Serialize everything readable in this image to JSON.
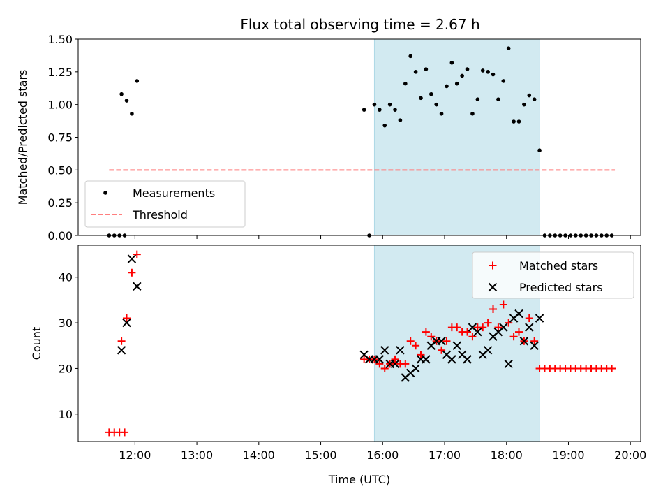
{
  "title": "Flux total observing time = 2.67 h",
  "colors": {
    "measurement": "#000000",
    "threshold": "#ff7f7f",
    "matched": "#ff0000",
    "predicted": "#000000",
    "shade": "#add8e6"
  },
  "chart_data": [
    {
      "type": "scatter",
      "ylabel": "Matched/Predicted stars",
      "ylim": [
        0,
        1.5
      ],
      "yticks": [
        "0.00",
        "0.25",
        "0.50",
        "0.75",
        "1.00",
        "1.25",
        "1.50"
      ],
      "shaded_span": [
        "15:52",
        "18:32"
      ],
      "legend_position": "lower-left",
      "series": [
        {
          "name": "Measurements",
          "style": "dot",
          "points": [
            [
              "11:35",
              0
            ],
            [
              "11:40",
              0
            ],
            [
              "11:45",
              0
            ],
            [
              "11:50",
              0
            ],
            [
              "11:47",
              1.08
            ],
            [
              "11:52",
              1.03
            ],
            [
              "11:57",
              0.93
            ],
            [
              "12:02",
              1.18
            ],
            [
              "15:42",
              0.96
            ],
            [
              "15:47",
              0
            ],
            [
              "15:52",
              1.0
            ],
            [
              "15:57",
              0.96
            ],
            [
              "16:02",
              0.84
            ],
            [
              "16:07",
              1.0
            ],
            [
              "16:12",
              0.96
            ],
            [
              "16:17",
              0.88
            ],
            [
              "16:22",
              1.16
            ],
            [
              "16:27",
              1.37
            ],
            [
              "16:32",
              1.25
            ],
            [
              "16:37",
              1.05
            ],
            [
              "16:42",
              1.27
            ],
            [
              "16:47",
              1.08
            ],
            [
              "16:52",
              1.0
            ],
            [
              "16:57",
              0.93
            ],
            [
              "17:02",
              1.14
            ],
            [
              "17:07",
              1.32
            ],
            [
              "17:12",
              1.16
            ],
            [
              "17:17",
              1.22
            ],
            [
              "17:22",
              1.27
            ],
            [
              "17:27",
              0.93
            ],
            [
              "17:32",
              1.04
            ],
            [
              "17:37",
              1.26
            ],
            [
              "17:42",
              1.25
            ],
            [
              "17:47",
              1.23
            ],
            [
              "17:52",
              1.04
            ],
            [
              "17:57",
              1.18
            ],
            [
              "18:02",
              1.43
            ],
            [
              "18:07",
              0.87
            ],
            [
              "18:12",
              0.87
            ],
            [
              "18:17",
              1.0
            ],
            [
              "18:22",
              1.07
            ],
            [
              "18:27",
              1.04
            ],
            [
              "18:32",
              0.65
            ],
            [
              "18:37",
              0
            ],
            [
              "18:42",
              0
            ],
            [
              "18:47",
              0
            ],
            [
              "18:52",
              0
            ],
            [
              "18:57",
              0
            ],
            [
              "19:02",
              0
            ],
            [
              "19:07",
              0
            ],
            [
              "19:12",
              0
            ],
            [
              "19:17",
              0
            ],
            [
              "19:22",
              0
            ],
            [
              "19:27",
              0
            ],
            [
              "19:32",
              0
            ],
            [
              "19:37",
              0
            ],
            [
              "19:42",
              0
            ]
          ]
        },
        {
          "name": "Threshold",
          "style": "dashed-line",
          "points": [
            [
              "11:35",
              0.5
            ],
            [
              "19:45",
              0.5
            ]
          ]
        }
      ]
    },
    {
      "type": "scatter",
      "xlabel": "Time (UTC)",
      "ylabel": "Count",
      "ylim": [
        4,
        47
      ],
      "yticks": [
        "10",
        "20",
        "30",
        "40"
      ],
      "xlim": [
        "11:05",
        "20:10"
      ],
      "xticks": [
        "12:00",
        "13:00",
        "14:00",
        "15:00",
        "16:00",
        "17:00",
        "18:00",
        "19:00",
        "20:00"
      ],
      "shaded_span": [
        "15:52",
        "18:32"
      ],
      "legend_position": "upper-right",
      "series": [
        {
          "name": "Matched stars",
          "style": "plus",
          "points": [
            [
              "11:35",
              6
            ],
            [
              "11:40",
              6
            ],
            [
              "11:45",
              6
            ],
            [
              "11:50",
              6
            ],
            [
              "11:47",
              26
            ],
            [
              "11:52",
              31
            ],
            [
              "11:57",
              41
            ],
            [
              "12:02",
              45
            ],
            [
              "15:42",
              22
            ],
            [
              "15:47",
              22
            ],
            [
              "15:52",
              22
            ],
            [
              "15:57",
              21
            ],
            [
              "16:02",
              20
            ],
            [
              "16:07",
              21
            ],
            [
              "16:12",
              22
            ],
            [
              "16:17",
              21
            ],
            [
              "16:22",
              21
            ],
            [
              "16:27",
              26
            ],
            [
              "16:32",
              25
            ],
            [
              "16:37",
              23
            ],
            [
              "16:42",
              28
            ],
            [
              "16:47",
              27
            ],
            [
              "16:52",
              26
            ],
            [
              "16:57",
              24
            ],
            [
              "17:02",
              26
            ],
            [
              "17:07",
              29
            ],
            [
              "17:12",
              29
            ],
            [
              "17:17",
              28
            ],
            [
              "17:22",
              28
            ],
            [
              "17:27",
              27
            ],
            [
              "17:32",
              29
            ],
            [
              "17:37",
              29
            ],
            [
              "17:42",
              30
            ],
            [
              "17:47",
              33
            ],
            [
              "17:52",
              29
            ],
            [
              "17:57",
              34
            ],
            [
              "18:02",
              30
            ],
            [
              "18:07",
              27
            ],
            [
              "18:12",
              28
            ],
            [
              "18:17",
              26
            ],
            [
              "18:22",
              31
            ],
            [
              "18:27",
              26
            ],
            [
              "18:32",
              20
            ],
            [
              "18:37",
              20
            ],
            [
              "18:42",
              20
            ],
            [
              "18:47",
              20
            ],
            [
              "18:52",
              20
            ],
            [
              "18:57",
              20
            ],
            [
              "19:02",
              20
            ],
            [
              "19:07",
              20
            ],
            [
              "19:12",
              20
            ],
            [
              "19:17",
              20
            ],
            [
              "19:22",
              20
            ],
            [
              "19:27",
              20
            ],
            [
              "19:32",
              20
            ],
            [
              "19:37",
              20
            ],
            [
              "19:42",
              20
            ]
          ]
        },
        {
          "name": "Predicted stars",
          "style": "x",
          "points": [
            [
              "11:47",
              24
            ],
            [
              "11:52",
              30
            ],
            [
              "11:57",
              44
            ],
            [
              "12:02",
              38
            ],
            [
              "15:42",
              23
            ],
            [
              "15:47",
              22
            ],
            [
              "15:52",
              22
            ],
            [
              "15:57",
              22
            ],
            [
              "16:02",
              24
            ],
            [
              "16:07",
              21
            ],
            [
              "16:12",
              21
            ],
            [
              "16:17",
              24
            ],
            [
              "16:22",
              18
            ],
            [
              "16:27",
              19
            ],
            [
              "16:32",
              20
            ],
            [
              "16:37",
              22
            ],
            [
              "16:42",
              22
            ],
            [
              "16:47",
              25
            ],
            [
              "16:52",
              26
            ],
            [
              "16:57",
              26
            ],
            [
              "17:02",
              23
            ],
            [
              "17:07",
              22
            ],
            [
              "17:12",
              25
            ],
            [
              "17:17",
              23
            ],
            [
              "17:22",
              22
            ],
            [
              "17:27",
              29
            ],
            [
              "17:32",
              28
            ],
            [
              "17:37",
              23
            ],
            [
              "17:42",
              24
            ],
            [
              "17:47",
              27
            ],
            [
              "17:52",
              28
            ],
            [
              "17:57",
              29
            ],
            [
              "18:02",
              21
            ],
            [
              "18:07",
              31
            ],
            [
              "18:12",
              32
            ],
            [
              "18:17",
              26
            ],
            [
              "18:22",
              29
            ],
            [
              "18:27",
              25
            ],
            [
              "18:32",
              31
            ]
          ]
        }
      ]
    }
  ]
}
